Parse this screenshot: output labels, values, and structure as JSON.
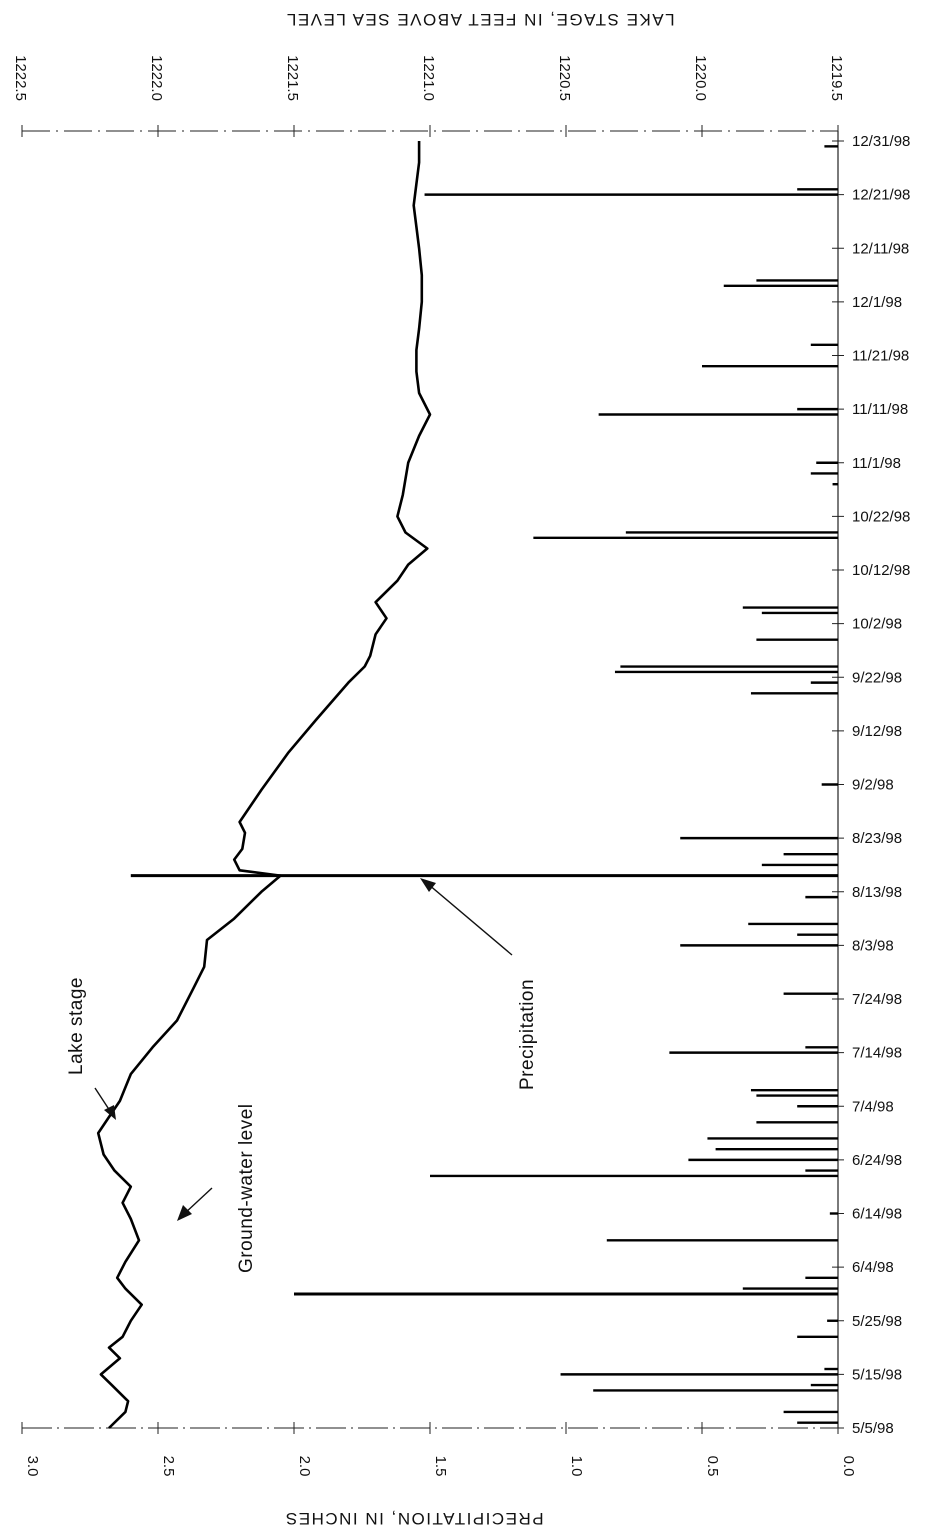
{
  "chart_data": {
    "type": "line",
    "orientation": "rotated-90",
    "title": "",
    "lake_axis_label": "LAKE STAGE, IN FEET ABOVE SEA LEVEL",
    "lake_axis_ticks": [
      "1222.5",
      "1222.0",
      "1221.5",
      "1221.0",
      "1220.5",
      "1220.0",
      "1219.5"
    ],
    "lake_axis_range": [
      1222.5,
      1219.5
    ],
    "precip_axis_label": "PRECIPITATION, IN INCHES",
    "precip_axis_ticks": [
      "3.0",
      "2.5",
      "2.0",
      "1.5",
      "1.0",
      "0.5",
      "0.0"
    ],
    "precip_axis_range": [
      3.0,
      0.0
    ],
    "date_axis_ticks": [
      "12/31/98",
      "12/21/98",
      "12/11/98",
      "12/1/98",
      "11/21/98",
      "11/11/98",
      "11/1/98",
      "10/22/98",
      "10/12/98",
      "10/2/98",
      "9/22/98",
      "9/12/98",
      "9/2/98",
      "8/23/98",
      "8/13/98",
      "8/3/98",
      "7/24/98",
      "7/14/98",
      "7/4/98",
      "6/24/98",
      "6/14/98",
      "6/4/98",
      "5/25/98",
      "5/15/98",
      "5/5/98"
    ],
    "date_range": [
      "1998-05-05",
      "1998-12-31"
    ],
    "annotations": {
      "lake_stage": "Lake stage",
      "ground_water": "Ground-water level",
      "precipitation": "Precipitation"
    },
    "series": [
      {
        "name": "Lake stage",
        "unit": "feet above sea level",
        "points": [
          [
            "1998-05-05",
            1222.18
          ],
          [
            "1998-05-08",
            1222.12
          ],
          [
            "1998-05-10",
            1222.11
          ],
          [
            "1998-05-13",
            1222.17
          ],
          [
            "1998-05-15",
            1222.21
          ],
          [
            "1998-05-18",
            1222.14
          ],
          [
            "1998-05-20",
            1222.18
          ],
          [
            "1998-05-22",
            1222.13
          ],
          [
            "1998-05-25",
            1222.1
          ],
          [
            "1998-05-28",
            1222.06
          ],
          [
            "1998-05-31",
            1222.12
          ],
          [
            "1998-06-02",
            1222.15
          ],
          [
            "1998-06-05",
            1222.12
          ],
          [
            "1998-06-09",
            1222.07
          ],
          [
            "1998-06-13",
            1222.1
          ],
          [
            "1998-06-16",
            1222.13
          ],
          [
            "1998-06-19",
            1222.1
          ],
          [
            "1998-06-22",
            1222.16
          ],
          [
            "1998-06-25",
            1222.2
          ],
          [
            "1998-06-29",
            1222.22
          ],
          [
            "1998-07-02",
            1222.18
          ],
          [
            "1998-07-05",
            1222.14
          ],
          [
            "1998-07-10",
            1222.1
          ],
          [
            "1998-07-15",
            1222.02
          ],
          [
            "1998-07-20",
            1221.93
          ],
          [
            "1998-07-26",
            1221.87
          ],
          [
            "1998-07-30",
            1221.83
          ],
          [
            "1998-08-04",
            1221.82
          ],
          [
            "1998-08-08",
            1221.72
          ],
          [
            "1998-08-13",
            1221.62
          ],
          [
            "1998-08-16",
            1221.55
          ],
          [
            "1998-08-17",
            1221.7
          ],
          [
            "1998-08-19",
            1221.72
          ],
          [
            "1998-08-21",
            1221.69
          ],
          [
            "1998-08-24",
            1221.68
          ],
          [
            "1998-08-26",
            1221.7
          ],
          [
            "1998-09-01",
            1221.62
          ],
          [
            "1998-09-08",
            1221.52
          ],
          [
            "1998-09-14",
            1221.42
          ],
          [
            "1998-09-21",
            1221.3
          ],
          [
            "1998-09-24",
            1221.24
          ],
          [
            "1998-09-26",
            1221.22
          ],
          [
            "1998-09-30",
            1221.2
          ],
          [
            "1998-10-03",
            1221.16
          ],
          [
            "1998-10-06",
            1221.2
          ],
          [
            "1998-10-10",
            1221.12
          ],
          [
            "1998-10-13",
            1221.08
          ],
          [
            "1998-10-16",
            1221.01
          ],
          [
            "1998-10-19",
            1221.09
          ],
          [
            "1998-10-22",
            1221.12
          ],
          [
            "1998-10-26",
            1221.1
          ],
          [
            "1998-11-01",
            1221.08
          ],
          [
            "1998-11-06",
            1221.04
          ],
          [
            "1998-11-10",
            1221.0
          ],
          [
            "1998-11-14",
            1221.04
          ],
          [
            "1998-11-18",
            1221.05
          ],
          [
            "1998-11-22",
            1221.05
          ],
          [
            "1998-11-26",
            1221.04
          ],
          [
            "1998-12-01",
            1221.03
          ],
          [
            "1998-12-06",
            1221.03
          ],
          [
            "1998-12-11",
            1221.04
          ],
          [
            "1998-12-15",
            1221.05
          ],
          [
            "1998-12-19",
            1221.06
          ],
          [
            "1998-12-23",
            1221.05
          ],
          [
            "1998-12-27",
            1221.04
          ],
          [
            "1998-12-31",
            1221.04
          ]
        ]
      },
      {
        "name": "Precipitation",
        "unit": "inches",
        "points": [
          [
            "1998-05-06",
            0.15
          ],
          [
            "1998-05-08",
            0.2
          ],
          [
            "1998-05-12",
            0.9
          ],
          [
            "1998-05-13",
            0.1
          ],
          [
            "1998-05-15",
            1.02
          ],
          [
            "1998-05-16",
            0.05
          ],
          [
            "1998-05-22",
            0.15
          ],
          [
            "1998-05-25",
            0.04
          ],
          [
            "1998-05-30",
            2.0
          ],
          [
            "1998-05-31",
            0.35
          ],
          [
            "1998-06-02",
            0.12
          ],
          [
            "1998-06-09",
            0.85
          ],
          [
            "1998-06-14",
            0.03
          ],
          [
            "1998-06-21",
            1.5
          ],
          [
            "1998-06-22",
            0.12
          ],
          [
            "1998-06-24",
            0.55
          ],
          [
            "1998-06-26",
            0.45
          ],
          [
            "1998-06-28",
            0.48
          ],
          [
            "1998-07-01",
            0.3
          ],
          [
            "1998-07-04",
            0.15
          ],
          [
            "1998-07-06",
            0.3
          ],
          [
            "1998-07-07",
            0.32
          ],
          [
            "1998-07-14",
            0.62
          ],
          [
            "1998-07-15",
            0.12
          ],
          [
            "1998-07-25",
            0.2
          ],
          [
            "1998-08-03",
            0.58
          ],
          [
            "1998-08-05",
            0.15
          ],
          [
            "1998-08-07",
            0.33
          ],
          [
            "1998-08-12",
            0.12
          ],
          [
            "1998-08-16",
            2.6
          ],
          [
            "1998-08-18",
            0.28
          ],
          [
            "1998-08-20",
            0.2
          ],
          [
            "1998-08-23",
            0.58
          ],
          [
            "1998-09-02",
            0.06
          ],
          [
            "1998-09-19",
            0.32
          ],
          [
            "1998-09-21",
            0.1
          ],
          [
            "1998-09-23",
            0.82
          ],
          [
            "1998-09-24",
            0.8
          ],
          [
            "1998-09-29",
            0.3
          ],
          [
            "1998-10-04",
            0.28
          ],
          [
            "1998-10-05",
            0.35
          ],
          [
            "1998-10-18",
            1.12
          ],
          [
            "1998-10-19",
            0.78
          ],
          [
            "1998-10-28",
            0.02
          ],
          [
            "1998-10-30",
            0.1
          ],
          [
            "1998-11-01",
            0.08
          ],
          [
            "1998-11-10",
            0.88
          ],
          [
            "1998-11-11",
            0.15
          ],
          [
            "1998-11-19",
            0.5
          ],
          [
            "1998-11-23",
            0.1
          ],
          [
            "1998-12-04",
            0.42
          ],
          [
            "1998-12-05",
            0.3
          ],
          [
            "1998-12-21",
            1.52
          ],
          [
            "1998-12-22",
            0.15
          ],
          [
            "1998-12-30",
            0.05
          ]
        ]
      }
    ]
  }
}
